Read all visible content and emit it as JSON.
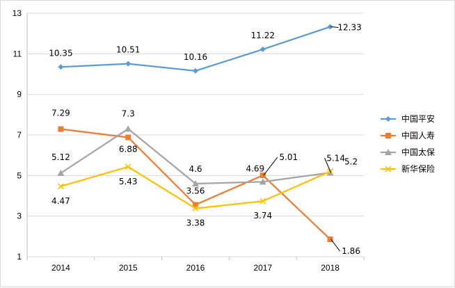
{
  "chart_data": {
    "type": "line",
    "title": "",
    "xlabel": "",
    "ylabel": "",
    "categories": [
      "2014",
      "2015",
      "2016",
      "2017",
      "2018"
    ],
    "ylim": [
      1,
      13
    ],
    "yticks": [
      1,
      3,
      5,
      7,
      9,
      11,
      13
    ],
    "grid": "horizontal",
    "legend_position": "right",
    "series": [
      {
        "name": "中国平安",
        "color": "#5b9bd5",
        "marker": "diamond",
        "values": [
          10.35,
          10.51,
          10.16,
          11.22,
          12.33
        ]
      },
      {
        "name": "中国人寿",
        "color": "#ed7d31",
        "marker": "square",
        "values": [
          7.29,
          6.88,
          3.56,
          5.01,
          1.86
        ]
      },
      {
        "name": "中国太保",
        "color": "#a5a5a5",
        "marker": "triangle",
        "values": [
          5.12,
          7.3,
          4.6,
          4.69,
          5.14
        ]
      },
      {
        "name": "新华保险",
        "color": "#ffc000",
        "marker": "x",
        "values": [
          4.47,
          5.43,
          3.38,
          3.74,
          5.2
        ]
      }
    ],
    "data_labels": [
      [
        "10.35",
        "10.51",
        "10.16",
        "11.22",
        "12.33"
      ],
      [
        "7.29",
        "6.88",
        "3.56",
        "5.01",
        "1.86"
      ],
      [
        "5.12",
        "7.3",
        "4.6",
        "4.69",
        "5.14"
      ],
      [
        "4.47",
        "5.43",
        "3.38",
        "3.74",
        "5.2"
      ]
    ]
  }
}
